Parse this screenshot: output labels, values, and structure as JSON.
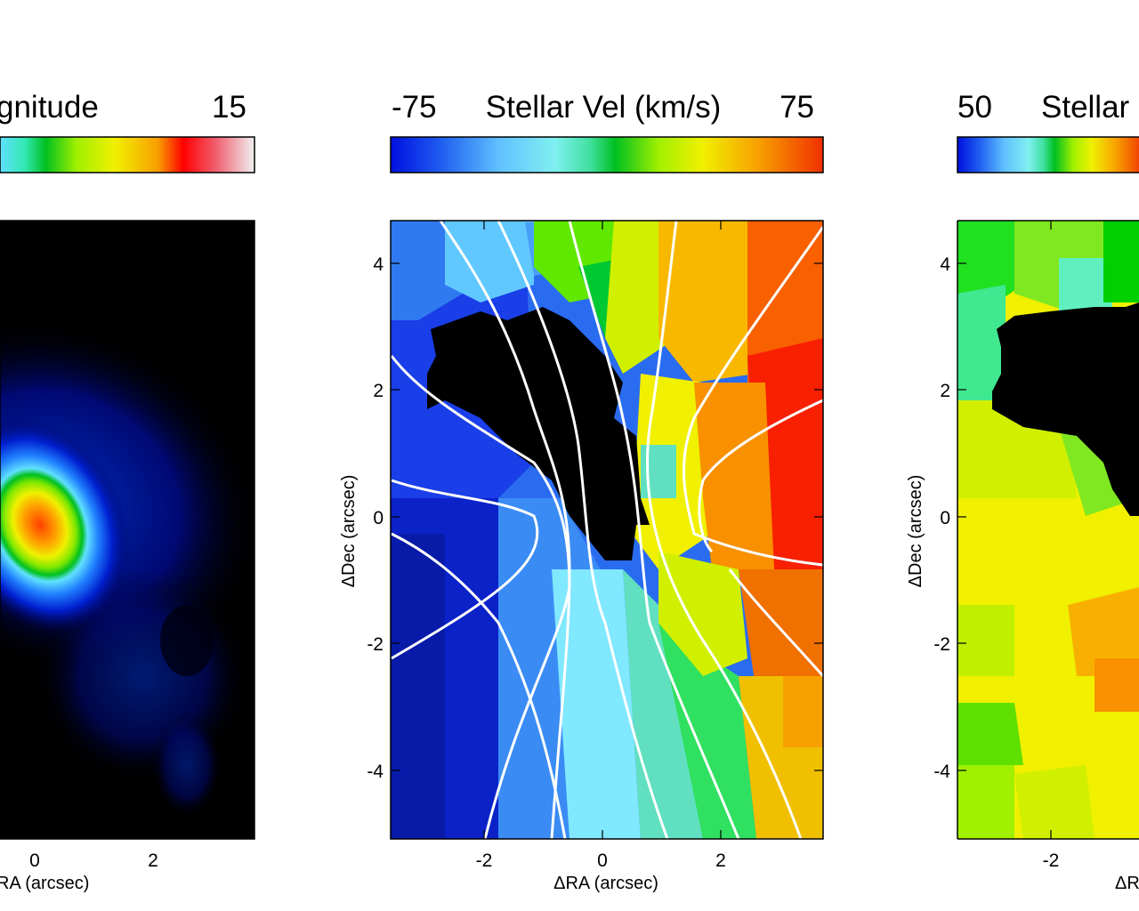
{
  "chart_data": [
    {
      "type": "heatmap",
      "colorbar": {
        "label": "gnitude",
        "max": "15"
      },
      "xticks": [
        "0",
        "2"
      ],
      "xlabel": "RA (arcsec)"
    },
    {
      "type": "heatmap",
      "colorbar": {
        "min": "-75",
        "label": "Stellar Vel (km/s)",
        "max": "75"
      },
      "xticks": [
        "-2",
        "0",
        "2"
      ],
      "yticks": [
        "4",
        "2",
        "0",
        "-2",
        "-4"
      ],
      "xlabel": "ΔRA (arcsec)",
      "ylabel": "ΔDec (arcsec)",
      "xlim": [
        -3.6,
        3.7
      ],
      "ylim": [
        -5.1,
        4.7
      ],
      "contours": "white iso-velocity lines",
      "masked_region": "black"
    },
    {
      "type": "heatmap",
      "colorbar": {
        "min": "50",
        "label": "Stellar"
      },
      "xticks": [
        "-2"
      ],
      "yticks": [
        "4",
        "2",
        "0",
        "-2",
        "-4"
      ],
      "xlabel": "ΔR",
      "ylabel": "ΔDec (arcsec)"
    }
  ]
}
